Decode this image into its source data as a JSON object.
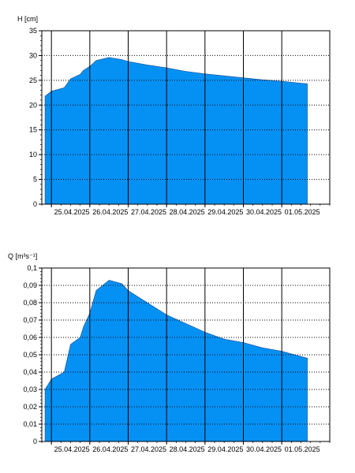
{
  "colors": {
    "fill": "#0591f4",
    "grid": "#000000",
    "background": "#ffffff"
  },
  "chart_data": [
    {
      "type": "area",
      "ylabel": "H [cm]",
      "ylim": [
        0,
        35
      ],
      "yticks": [
        "0",
        "5",
        "10",
        "15",
        "20",
        "25",
        "30",
        "35"
      ],
      "ytick_values": [
        0,
        5,
        10,
        15,
        20,
        25,
        30,
        35
      ],
      "xlim": [
        "2025-04-24T18:00",
        "2025-05-02T06:00"
      ],
      "xticks": [
        {
          "label": "25.04.2025",
          "at": "2025-04-25T00:00"
        },
        {
          "label": "26.04.2025",
          "at": "2025-04-26T00:00"
        },
        {
          "label": "27.04.2025",
          "at": "2025-04-27T00:00"
        },
        {
          "label": "28.04.2025",
          "at": "2025-04-28T00:00"
        },
        {
          "label": "29.04.2025",
          "at": "2025-04-29T00:00"
        },
        {
          "label": "30.04.2025",
          "at": "2025-04-30T00:00"
        },
        {
          "label": "01.05.2025",
          "at": "2025-05-01T00:00"
        }
      ],
      "grid": true,
      "series": [
        {
          "x": [
            "2025-04-24T20:00",
            "2025-04-25T00:00",
            "2025-04-25T08:00",
            "2025-04-25T12:00",
            "2025-04-25T18:00",
            "2025-04-25T20:00",
            "2025-04-26T00:00",
            "2025-04-26T04:00",
            "2025-04-26T12:00",
            "2025-04-26T20:00",
            "2025-04-27T00:00",
            "2025-04-27T12:00",
            "2025-04-28T00:00",
            "2025-04-28T12:00",
            "2025-04-29T00:00",
            "2025-04-29T12:00",
            "2025-04-30T00:00",
            "2025-04-30T12:00",
            "2025-05-01T00:00",
            "2025-05-01T12:00",
            "2025-05-01T16:00"
          ],
          "values": [
            21.8,
            22.8,
            23.5,
            25.3,
            26.2,
            27.0,
            27.8,
            29.0,
            29.6,
            29.2,
            28.8,
            28.1,
            27.5,
            26.8,
            26.3,
            25.9,
            25.5,
            25.1,
            24.8,
            24.4,
            24.3
          ]
        }
      ]
    },
    {
      "type": "area",
      "ylabel": "Q [m³s⁻¹]",
      "ylim": [
        0,
        0.1
      ],
      "yticks": [
        "0",
        "0,01",
        "0,02",
        "0,03",
        "0,04",
        "0,05",
        "0,06",
        "0,07",
        "0,08",
        "0,09",
        "0,1"
      ],
      "ytick_values": [
        0,
        0.01,
        0.02,
        0.03,
        0.04,
        0.05,
        0.06,
        0.07,
        0.08,
        0.09,
        0.1
      ],
      "xlim": [
        "2025-04-24T18:00",
        "2025-05-02T06:00"
      ],
      "xticks": [
        {
          "label": "25.04.2025",
          "at": "2025-04-25T00:00"
        },
        {
          "label": "26.04.2025",
          "at": "2025-04-26T00:00"
        },
        {
          "label": "27.04.2025",
          "at": "2025-04-27T00:00"
        },
        {
          "label": "28.04.2025",
          "at": "2025-04-28T00:00"
        },
        {
          "label": "29.04.2025",
          "at": "2025-04-29T00:00"
        },
        {
          "label": "30.04.2025",
          "at": "2025-04-30T00:00"
        },
        {
          "label": "01.05.2025",
          "at": "2025-05-01T00:00"
        }
      ],
      "grid": true,
      "series": [
        {
          "x": [
            "2025-04-24T20:00",
            "2025-04-25T00:00",
            "2025-04-25T08:00",
            "2025-04-25T12:00",
            "2025-04-25T18:00",
            "2025-04-25T20:00",
            "2025-04-26T00:00",
            "2025-04-26T04:00",
            "2025-04-26T12:00",
            "2025-04-26T20:00",
            "2025-04-27T00:00",
            "2025-04-27T12:00",
            "2025-04-28T00:00",
            "2025-04-28T12:00",
            "2025-04-29T00:00",
            "2025-04-29T12:00",
            "2025-04-30T00:00",
            "2025-04-30T12:00",
            "2025-05-01T00:00",
            "2025-05-01T12:00",
            "2025-05-01T16:00"
          ],
          "values": [
            0.03,
            0.036,
            0.04,
            0.056,
            0.06,
            0.066,
            0.074,
            0.087,
            0.093,
            0.091,
            0.087,
            0.08,
            0.073,
            0.068,
            0.063,
            0.059,
            0.057,
            0.054,
            0.052,
            0.049,
            0.048
          ]
        }
      ]
    }
  ]
}
